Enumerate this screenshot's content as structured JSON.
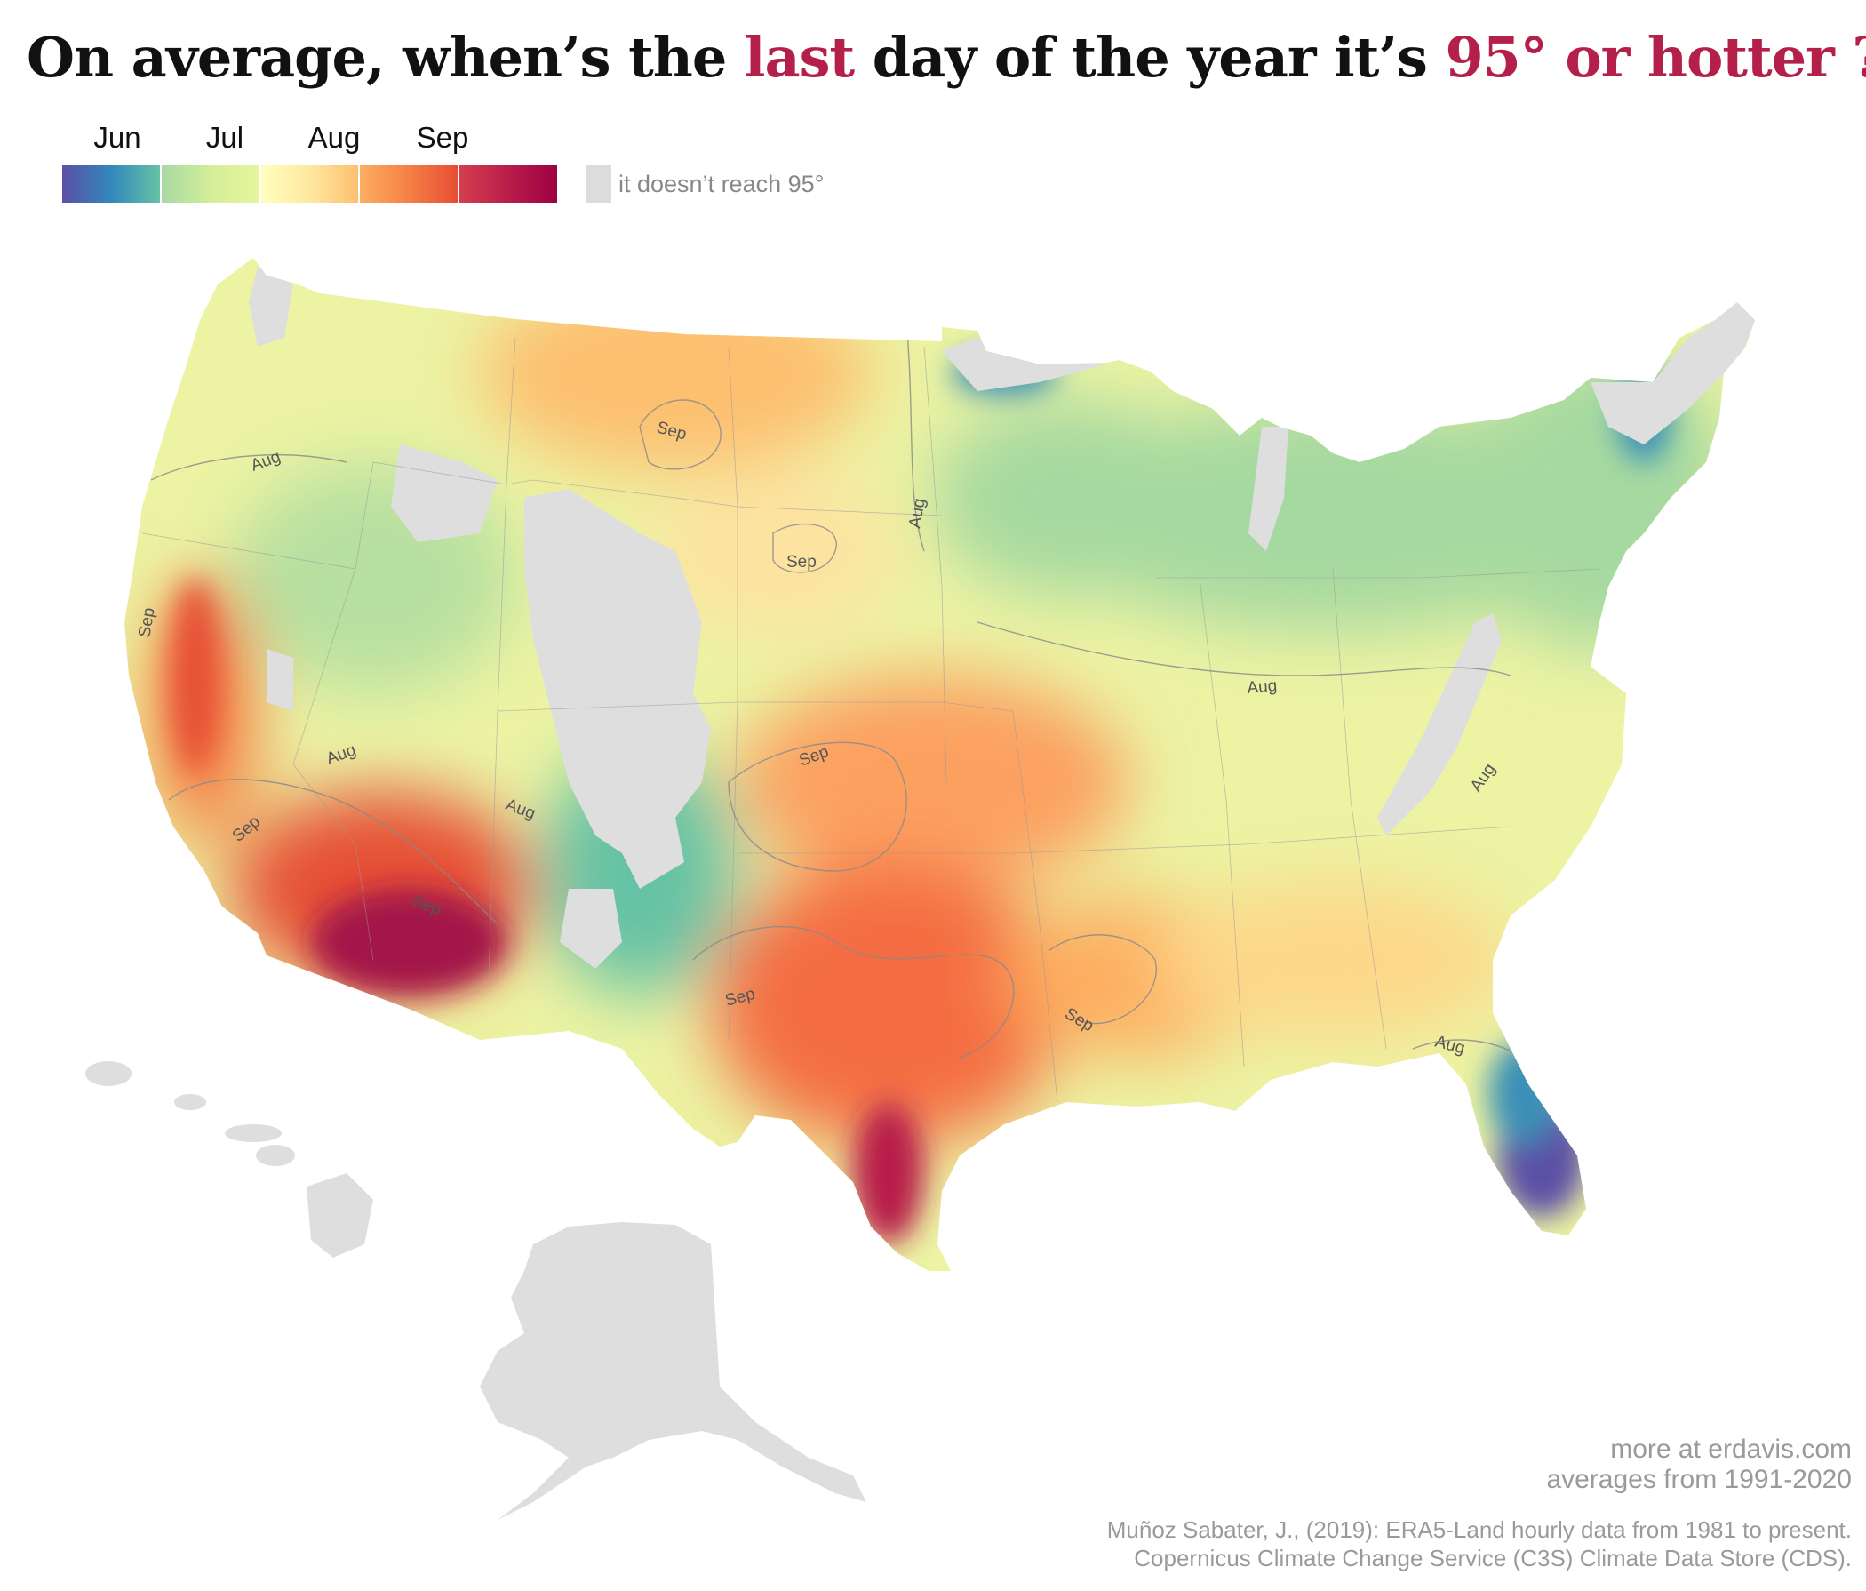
{
  "title": {
    "part1": "On average, when’s the ",
    "last": "last",
    "part2": " day of the year it’s ",
    "ninety_five": "95°",
    "or_hotter": " or hotter",
    "q": " ?"
  },
  "legend": {
    "months": [
      "Jun",
      "Jul",
      "Aug",
      "Sep"
    ],
    "no_data_label": "it doesn’t reach 95°",
    "gradient_colors": [
      [
        "#5b4fa6",
        "#3288bd",
        "#66c2a5"
      ],
      [
        "#a7d9a3",
        "#d4ee9a",
        "#e6f59a"
      ],
      [
        "#ffffbf",
        "#fee8a0",
        "#fdbf6f"
      ],
      [
        "#fdae61",
        "#f57f45",
        "#e64f35"
      ],
      [
        "#d53e4f",
        "#b81d4a",
        "#9e0142"
      ]
    ],
    "no_data_color": "#dcdcdc"
  },
  "map": {
    "contour_labels": [
      {
        "text": "Sep",
        "region": "northern-california"
      },
      {
        "text": "Aug",
        "region": "oregon"
      },
      {
        "text": "Sep",
        "region": "eastern-montana"
      },
      {
        "text": "Sep",
        "region": "western-south-dakota"
      },
      {
        "text": "Aug",
        "region": "minnesota"
      },
      {
        "text": "Aug",
        "region": "nevada"
      },
      {
        "text": "Sep",
        "region": "southern-nevada"
      },
      {
        "text": "Aug",
        "region": "utah"
      },
      {
        "text": "Sep",
        "region": "arizona"
      },
      {
        "text": "Sep",
        "region": "kansas"
      },
      {
        "text": "Aug",
        "region": "illinois"
      },
      {
        "text": "Aug",
        "region": "appalachia"
      },
      {
        "text": "Sep",
        "region": "west-texas"
      },
      {
        "text": "Sep",
        "region": "louisiana"
      },
      {
        "text": "Aug",
        "region": "north-florida"
      }
    ],
    "colors": {
      "land_none": "#dedede",
      "jun": "#5b4fa6",
      "jun_teal": "#3a8fb7",
      "jul": "#a6d9a0",
      "aug": "#ecf3a3",
      "aug_late": "#fde3a0",
      "sep_early": "#fdbf6f",
      "sep": "#f57f45",
      "sep_late": "#d93e4a",
      "oct": "#a3124a"
    }
  },
  "footer": {
    "line1": "more at erdavis.com",
    "line2": "averages from 1991-2020",
    "line3": "Muñoz Sabater, J., (2019): ERA5-Land hourly data from 1981 to present.",
    "line4": "Copernicus Climate Change Service (C3S) Climate Data Store (CDS)."
  }
}
